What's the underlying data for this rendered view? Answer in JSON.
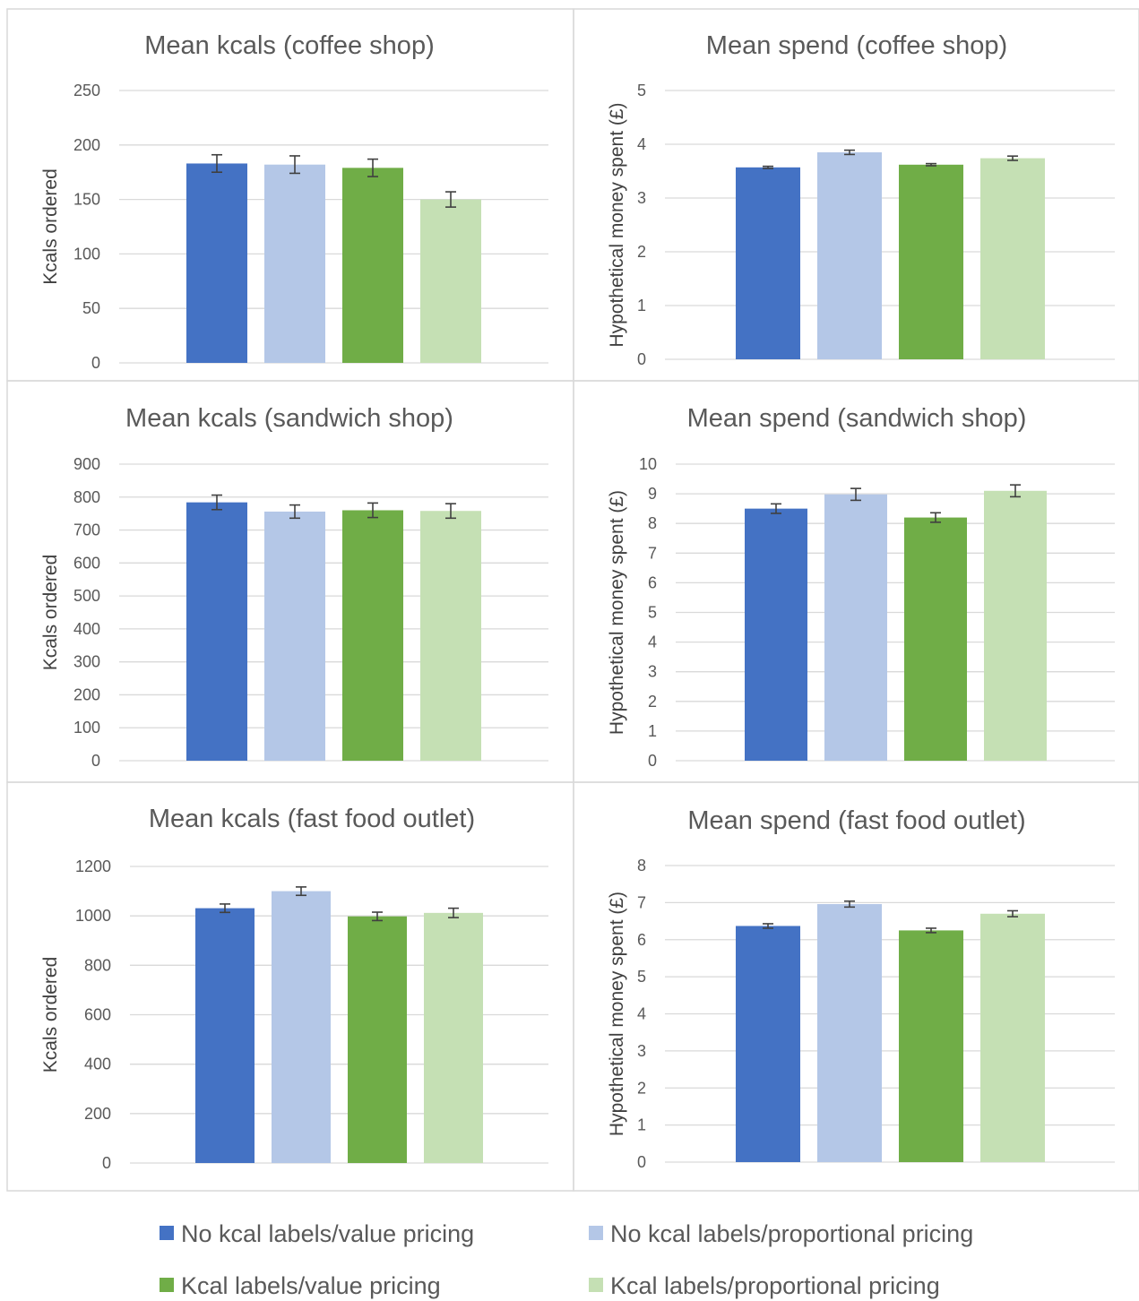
{
  "legend": [
    {
      "label": "No kcal labels/value pricing",
      "color": "#4472c4"
    },
    {
      "label": "No kcal labels/proportional pricing",
      "color": "#b4c7e7"
    },
    {
      "label": "Kcal labels/value pricing",
      "color": "#70ad47"
    },
    {
      "label": "Kcal labels/proportional pricing",
      "color": "#c5e0b4"
    }
  ],
  "chart_data": [
    {
      "type": "bar",
      "title": "Mean kcals (coffee shop)",
      "ylabel": "Kcals ordered",
      "ylim": [
        0,
        250
      ],
      "yticks": [
        "0",
        "50",
        "100",
        "150",
        "200",
        "250"
      ],
      "series": [
        {
          "name": "No kcal labels/value pricing",
          "value": 183,
          "error": 8
        },
        {
          "name": "No kcal labels/proportional pricing",
          "value": 182,
          "error": 8
        },
        {
          "name": "Kcal labels/value pricing",
          "value": 179,
          "error": 8
        },
        {
          "name": "Kcal labels/proportional pricing",
          "value": 150,
          "error": 7
        }
      ]
    },
    {
      "type": "bar",
      "title": "Mean spend (coffee shop)",
      "ylabel": "Hypothetical money spent (£)",
      "ylim": [
        0,
        5
      ],
      "yticks": [
        "0",
        "1",
        "2",
        "3",
        "4",
        "5"
      ],
      "series": [
        {
          "name": "No kcal labels/value pricing",
          "value": 3.57,
          "error": 0.02
        },
        {
          "name": "No kcal labels/proportional pricing",
          "value": 3.85,
          "error": 0.04
        },
        {
          "name": "Kcal labels/value pricing",
          "value": 3.62,
          "error": 0.02
        },
        {
          "name": "Kcal labels/proportional pricing",
          "value": 3.74,
          "error": 0.04
        }
      ]
    },
    {
      "type": "bar",
      "title": "Mean kcals (sandwich shop)",
      "ylabel": "Kcals ordered",
      "ylim": [
        0,
        900
      ],
      "yticks": [
        "0",
        "100",
        "200",
        "300",
        "400",
        "500",
        "600",
        "700",
        "800",
        "900"
      ],
      "series": [
        {
          "name": "No kcal labels/value pricing",
          "value": 784,
          "error": 22
        },
        {
          "name": "No kcal labels/proportional pricing",
          "value": 756,
          "error": 20
        },
        {
          "name": "Kcal labels/value pricing",
          "value": 760,
          "error": 22
        },
        {
          "name": "Kcal labels/proportional pricing",
          "value": 758,
          "error": 22
        }
      ]
    },
    {
      "type": "bar",
      "title": "Mean spend (sandwich shop)",
      "ylabel": "Hypothetical money spent (£)",
      "ylim": [
        0,
        10
      ],
      "yticks": [
        "0",
        "1",
        "2",
        "3",
        "4",
        "5",
        "6",
        "7",
        "8",
        "9",
        "10"
      ],
      "series": [
        {
          "name": "No kcal labels/value pricing",
          "value": 8.5,
          "error": 0.16
        },
        {
          "name": "No kcal labels/proportional pricing",
          "value": 8.98,
          "error": 0.2
        },
        {
          "name": "Kcal labels/value pricing",
          "value": 8.2,
          "error": 0.16
        },
        {
          "name": "Kcal labels/proportional pricing",
          "value": 9.1,
          "error": 0.2
        }
      ]
    },
    {
      "type": "bar",
      "title": "Mean kcals (fast food outlet)",
      "ylabel": "Kcals ordered",
      "ylim": [
        0,
        1200
      ],
      "yticks": [
        "0",
        "200",
        "400",
        "600",
        "800",
        "1000",
        "1200"
      ],
      "series": [
        {
          "name": "No kcal labels/value pricing",
          "value": 1031,
          "error": 17
        },
        {
          "name": "No kcal labels/proportional pricing",
          "value": 1100,
          "error": 17
        },
        {
          "name": "Kcal labels/value pricing",
          "value": 998,
          "error": 17
        },
        {
          "name": "Kcal labels/proportional pricing",
          "value": 1012,
          "error": 19
        }
      ]
    },
    {
      "type": "bar",
      "title": "Mean spend (fast food outlet)",
      "ylabel": "Hypothetical money spent (£)",
      "ylim": [
        0,
        8
      ],
      "yticks": [
        "0",
        "1",
        "2",
        "3",
        "4",
        "5",
        "6",
        "7",
        "8"
      ],
      "series": [
        {
          "name": "No kcal labels/value pricing",
          "value": 6.37,
          "error": 0.06
        },
        {
          "name": "No kcal labels/proportional pricing",
          "value": 6.96,
          "error": 0.08
        },
        {
          "name": "Kcal labels/value pricing",
          "value": 6.25,
          "error": 0.06
        },
        {
          "name": "Kcal labels/proportional pricing",
          "value": 6.7,
          "error": 0.08
        }
      ]
    }
  ]
}
